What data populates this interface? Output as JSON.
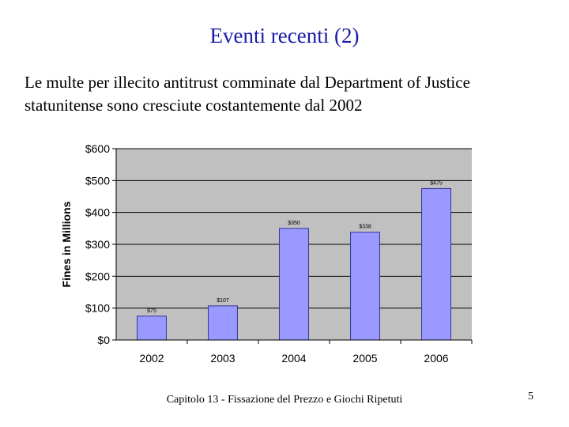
{
  "slide": {
    "title": "Eventi recenti (2)",
    "body_lines": [
      "Le multe per illecito antitrust comminate dal Department of Justice",
      "statunitense sono cresciute costantemente dal 2002"
    ],
    "footer": "Capitolo 13 - Fissazione del Prezzo e Giochi Ripetuti",
    "page_number": "5"
  },
  "colors": {
    "title": "#1a1aa8",
    "plot_bg": "#c0c0c0",
    "bar_fill": "#9999ff",
    "bar_stroke": "#333399"
  },
  "chart_data": {
    "type": "bar",
    "title": "",
    "xlabel": "",
    "ylabel": "Fines in Millions",
    "categories": [
      "2002",
      "2003",
      "2004",
      "2005",
      "2006"
    ],
    "values": [
      75,
      107,
      350,
      338,
      475
    ],
    "data_labels": [
      "$75",
      "$107",
      "$350",
      "$338",
      "$475"
    ],
    "ylim": [
      0,
      600
    ],
    "yticks": [
      0,
      100,
      200,
      300,
      400,
      500,
      600
    ],
    "ytick_labels": [
      "$0",
      "$100",
      "$200",
      "$300",
      "$400",
      "$500",
      "$600"
    ],
    "grid": true,
    "legend": "none"
  }
}
